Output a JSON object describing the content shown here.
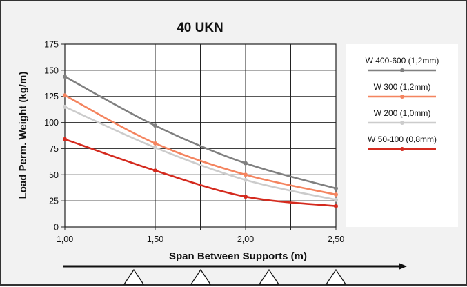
{
  "chart_data": {
    "type": "line",
    "title": "40 UKN",
    "xlabel": "Span Between Supports (m)",
    "ylabel": "Load Perm. Weight (kg/m)",
    "xlim": [
      1.0,
      2.5
    ],
    "ylim": [
      0,
      175
    ],
    "x_ticks": [
      "1,00",
      "1,50",
      "2,00",
      "2,50"
    ],
    "y_ticks": [
      "0",
      "25",
      "50",
      "75",
      "100",
      "125",
      "150",
      "175"
    ],
    "grid": true,
    "legend_position": "right",
    "series": [
      {
        "name": "W 400-600 (1,2mm)",
        "color": "#808080",
        "x": [
          1.0,
          1.5,
          2.0,
          2.5
        ],
        "y": [
          144,
          97,
          61,
          37
        ]
      },
      {
        "name": "W 300 (1,2mm)",
        "color": "#f4845f",
        "x": [
          1.0,
          1.5,
          2.0,
          2.5
        ],
        "y": [
          126,
          80,
          50,
          31
        ]
      },
      {
        "name": "W 200 (1,0mm)",
        "color": "#cccccc",
        "x": [
          1.0,
          1.5,
          2.0,
          2.5
        ],
        "y": [
          115,
          76,
          45,
          26
        ]
      },
      {
        "name": "W 50-100 (0,8mm)",
        "color": "#d42a1e",
        "x": [
          1.0,
          1.5,
          2.0,
          2.5
        ],
        "y": [
          84,
          54,
          29,
          20
        ]
      }
    ]
  }
}
